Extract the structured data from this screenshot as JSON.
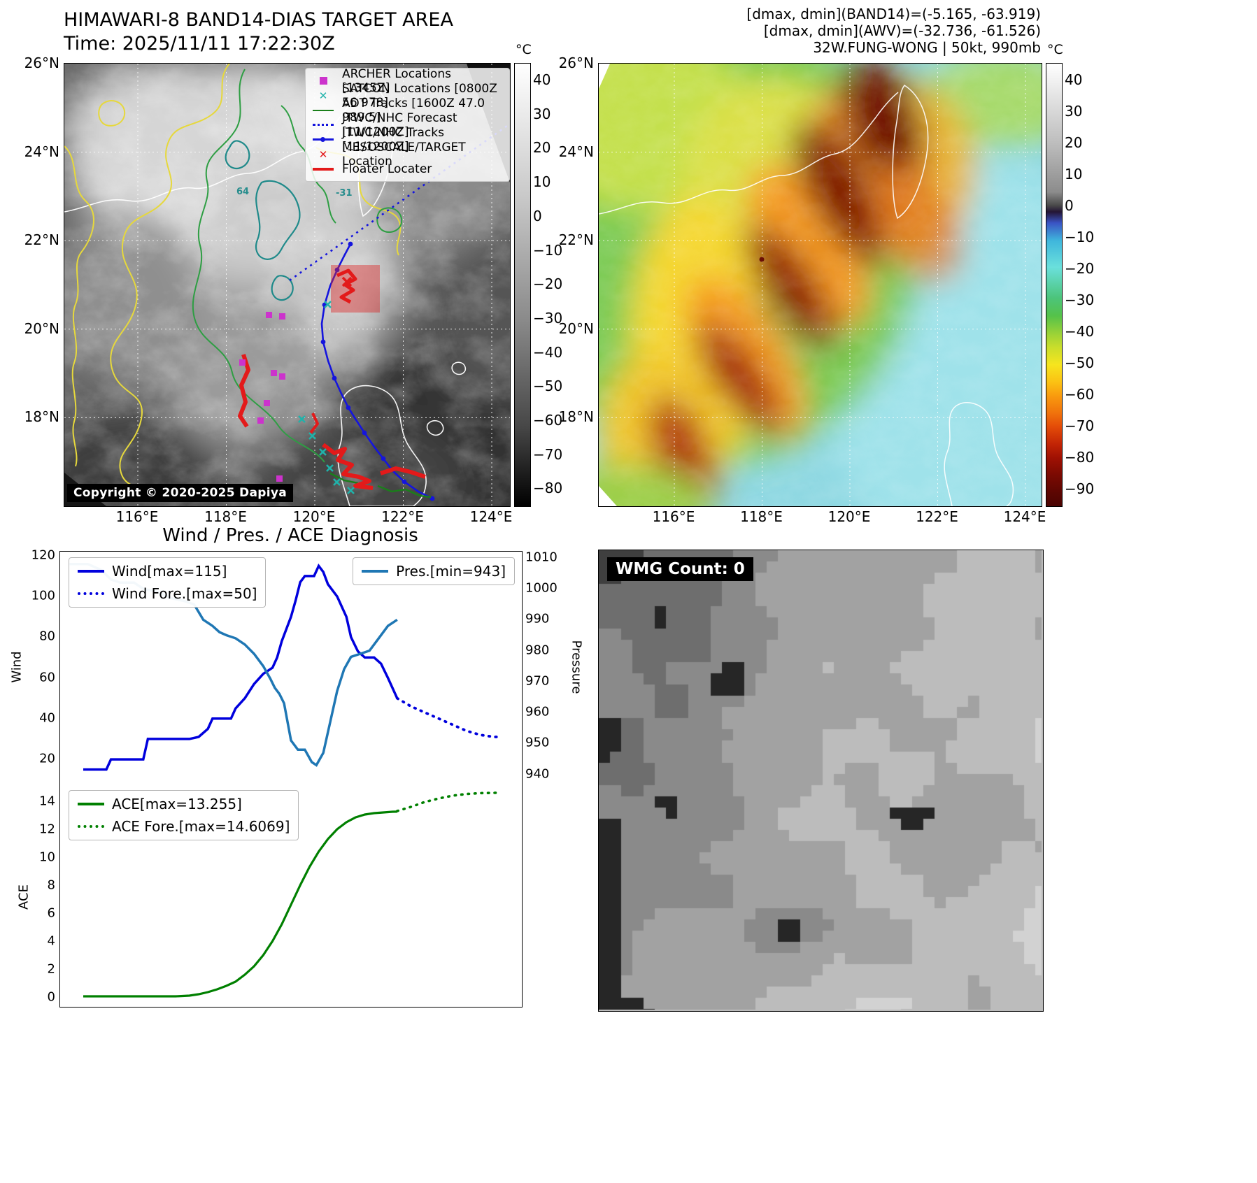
{
  "colors": {
    "wind_line": "#0000dd",
    "pressure_line": "#1f77b4",
    "ace_line": "#008000",
    "track_blue": "#1515dd",
    "floater_red": "#e31a1a",
    "archer_magenta": "#cc33cc",
    "satcon_teal": "#20b2aa",
    "adt_green": "#1a7f1a"
  },
  "top_left": {
    "title": "HIMAWARI-8 BAND14-DIAS TARGET AREA",
    "subtitle": "Time: 2025/11/11 17:22:30Z",
    "copyright": "Copyright © 2020-2025 Dapiya",
    "legend": [
      {
        "label": "ARCHER Locations [1345Z]",
        "marker": "square-magenta"
      },
      {
        "label": "SATCON Locations [0800Z 56 978]",
        "marker": "x-teal"
      },
      {
        "label": "ADT Tracks [1600Z 47.0 989.5]",
        "marker": "line-green"
      },
      {
        "label": "JTWC/NHC Forecast [11/1200Z]",
        "marker": "dotted-blue"
      },
      {
        "label": "JTWC/NHC Tracks [11/1200Z]",
        "marker": "linedot-blue"
      },
      {
        "label": "MESOSCALE/TARGET Location",
        "marker": "x-red"
      },
      {
        "label": "Floater Locater",
        "marker": "line-red"
      }
    ],
    "contour_labels": [
      "64",
      "-31"
    ],
    "x_ticks": [
      "116°E",
      "118°E",
      "120°E",
      "122°E",
      "124°E"
    ],
    "y_ticks": [
      "26°N",
      "24°N",
      "22°N",
      "20°N",
      "18°N"
    ],
    "colorbar": {
      "unit": "°C",
      "ticks": [
        "40",
        "30",
        "20",
        "10",
        "0",
        "−10",
        "−20",
        "−30",
        "−40",
        "−50",
        "−60",
        "−70",
        "−80"
      ]
    }
  },
  "top_right": {
    "header_lines": [
      "[dmax, dmin](BAND14)=(-5.165, -63.919)",
      "[dmax, dmin](AWV)=(-32.736, -61.526)",
      "32W.FUNG-WONG | 50kt, 990mb"
    ],
    "x_ticks": [
      "116°E",
      "118°E",
      "120°E",
      "122°E",
      "124°E"
    ],
    "y_ticks": [
      "26°N",
      "24°N",
      "22°N",
      "20°N",
      "18°N"
    ],
    "colorbar": {
      "unit": "°C",
      "ticks": [
        "40",
        "30",
        "20",
        "10",
        "0",
        "−10",
        "−20",
        "−30",
        "−40",
        "−50",
        "−60",
        "−70",
        "−80",
        "−90"
      ]
    }
  },
  "bottom_left": {
    "title": "Wind / Pres. / ACE Diagnosis",
    "wind_legend": [
      "Wind[max=115]",
      "Wind Fore.[max=50]"
    ],
    "pres_legend": [
      "Pres.[min=943]"
    ],
    "ace_legend": [
      "ACE[max=13.255]",
      "ACE Fore.[max=14.6069]"
    ],
    "ylabel_wind": "Wind",
    "ylabel_pressure": "Pressure",
    "ylabel_ace": "ACE",
    "wind_ticks": [
      "20",
      "40",
      "60",
      "80",
      "100",
      "120"
    ],
    "pressure_ticks": [
      "940",
      "950",
      "960",
      "970",
      "980",
      "990",
      "1000",
      "1010"
    ],
    "ace_ticks": [
      "0",
      "2",
      "4",
      "6",
      "8",
      "10",
      "12",
      "14"
    ]
  },
  "bottom_right": {
    "wmg_label": "WMG Count: 0"
  },
  "chart_data": [
    {
      "type": "line",
      "panel": "wind-pressure",
      "title": "Wind / Pres. / ACE Diagnosis",
      "x_range": [
        0,
        1
      ],
      "x_note": "normalized time, no x tick labels shown",
      "series": [
        {
          "name": "Wind[max=115]",
          "axis": "left",
          "ylabel": "Wind",
          "ylim": [
            8,
            122
          ],
          "style": "solid",
          "color": "#0000dd",
          "width": 3.5,
          "x": [
            0.05,
            0.1,
            0.11,
            0.14,
            0.16,
            0.18,
            0.19,
            0.28,
            0.3,
            0.32,
            0.33,
            0.37,
            0.38,
            0.4,
            0.42,
            0.44,
            0.46,
            0.47,
            0.48,
            0.5,
            0.51,
            0.52,
            0.53,
            0.55,
            0.56,
            0.57,
            0.58,
            0.6,
            0.62,
            0.63,
            0.645,
            0.66,
            0.68,
            0.695,
            0.71,
            0.73
          ],
          "y": [
            15,
            15,
            20,
            20,
            20,
            20,
            30,
            30,
            31,
            35,
            40,
            40,
            45,
            50,
            57,
            62,
            65,
            70,
            78,
            90,
            98,
            107,
            110,
            110,
            115,
            112,
            106,
            100,
            90,
            80,
            73,
            70,
            70,
            67,
            60,
            50
          ]
        },
        {
          "name": "Wind Fore.[max=50]",
          "axis": "left",
          "ylim": [
            8,
            122
          ],
          "style": "dotted",
          "color": "#0000dd",
          "width": 3.8,
          "x": [
            0.73,
            0.76,
            0.79,
            0.82,
            0.85,
            0.88,
            0.91,
            0.94,
            0.955
          ],
          "y": [
            50,
            46,
            43,
            40,
            37,
            34,
            32,
            31,
            31
          ]
        },
        {
          "name": "Pres.[min=943]",
          "axis": "right",
          "ylabel": "Pressure",
          "ylim": [
            937,
            1012
          ],
          "style": "solid",
          "color": "#1f77b4",
          "width": 3.5,
          "x": [
            0.02,
            0.06,
            0.09,
            0.11,
            0.13,
            0.16,
            0.18,
            0.21,
            0.24,
            0.27,
            0.29,
            0.31,
            0.33,
            0.345,
            0.36,
            0.38,
            0.4,
            0.42,
            0.44,
            0.455,
            0.465,
            0.475,
            0.485,
            0.5,
            0.515,
            0.53,
            0.545,
            0.555,
            0.57,
            0.585,
            0.6,
            0.615,
            0.63,
            0.65,
            0.67,
            0.69,
            0.71,
            0.73
          ],
          "y": [
            1008,
            1008,
            1006,
            1003,
            1002,
            1002,
            1000,
            999,
            997,
            996,
            995,
            990,
            988,
            986,
            985,
            984,
            982,
            979,
            975,
            971,
            968,
            966,
            963,
            951,
            948,
            948,
            944,
            943,
            947,
            957,
            967,
            974,
            978,
            979,
            980,
            984,
            988,
            990
          ]
        }
      ]
    },
    {
      "type": "line",
      "panel": "ace",
      "x_range": [
        0,
        1
      ],
      "series": [
        {
          "name": "ACE[max=13.255]",
          "ylabel": "ACE",
          "ylim": [
            -0.7,
            15.3
          ],
          "style": "solid",
          "color": "#008000",
          "width": 3.2,
          "x": [
            0.05,
            0.15,
            0.25,
            0.28,
            0.3,
            0.32,
            0.34,
            0.36,
            0.38,
            0.4,
            0.42,
            0.44,
            0.46,
            0.48,
            0.5,
            0.52,
            0.54,
            0.56,
            0.58,
            0.6,
            0.62,
            0.64,
            0.66,
            0.68,
            0.7,
            0.72,
            0.73
          ],
          "y": [
            0.05,
            0.05,
            0.05,
            0.1,
            0.2,
            0.35,
            0.55,
            0.8,
            1.1,
            1.6,
            2.2,
            3.0,
            4.0,
            5.2,
            6.6,
            8.0,
            9.3,
            10.4,
            11.3,
            12.0,
            12.5,
            12.85,
            13.05,
            13.15,
            13.2,
            13.25,
            13.255
          ]
        },
        {
          "name": "ACE Fore.[max=14.6069]",
          "ylim": [
            -0.7,
            15.3
          ],
          "style": "dotted",
          "color": "#008000",
          "width": 3.6,
          "x": [
            0.73,
            0.76,
            0.79,
            0.82,
            0.85,
            0.88,
            0.91,
            0.94,
            0.955
          ],
          "y": [
            13.3,
            13.6,
            13.95,
            14.2,
            14.4,
            14.52,
            14.58,
            14.6,
            14.61
          ]
        }
      ]
    }
  ]
}
